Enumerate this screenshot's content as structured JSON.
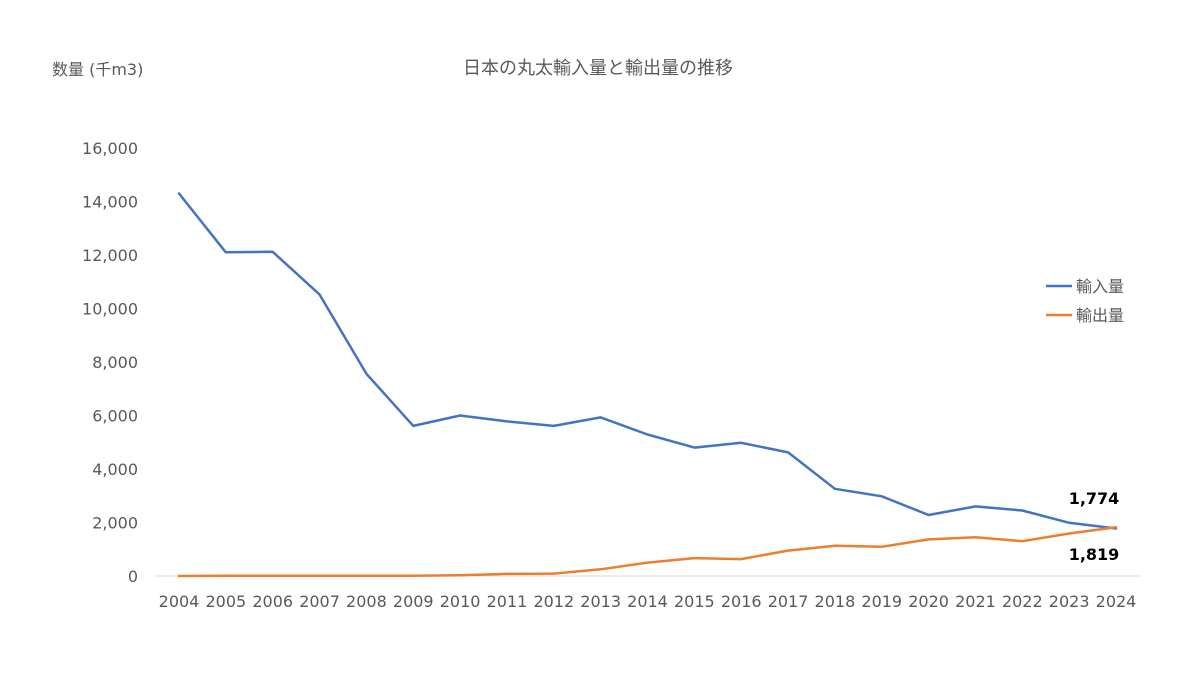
{
  "chart_data": {
    "type": "line",
    "title": "日本の丸太輸入量と輸出量の推移",
    "ylabel": "数量 (千m3)",
    "xlabel": "",
    "ylim": [
      0,
      16000
    ],
    "yticks": [
      0,
      2000,
      4000,
      6000,
      8000,
      10000,
      12000,
      14000,
      16000
    ],
    "ytick_labels": [
      "0",
      "2,000",
      "4,000",
      "6,000",
      "8,000",
      "10,000",
      "12,000",
      "14,000",
      "16,000"
    ],
    "grid": false,
    "legend_position": "right",
    "categories": [
      "2004",
      "2005",
      "2006",
      "2007",
      "2008",
      "2009",
      "2010",
      "2011",
      "2012",
      "2013",
      "2014",
      "2015",
      "2016",
      "2017",
      "2018",
      "2019",
      "2020",
      "2021",
      "2022",
      "2023",
      "2024"
    ],
    "series": [
      {
        "name": "輸入量",
        "color": "#4472C4",
        "values": [
          14300,
          12100,
          12120,
          10520,
          7560,
          5610,
          6000,
          5780,
          5610,
          5930,
          5290,
          4800,
          4980,
          4620,
          3260,
          2980,
          2280,
          2600,
          2450,
          1990,
          1774
        ]
      },
      {
        "name": "輸出量",
        "color": "#ED7D31",
        "values": [
          0,
          10,
          10,
          10,
          10,
          10,
          30,
          80,
          90,
          250,
          500,
          670,
          630,
          950,
          1130,
          1090,
          1370,
          1450,
          1300,
          1590,
          1819
        ]
      }
    ],
    "annotations": [
      {
        "text": "1,774",
        "series": 0,
        "index": 20
      },
      {
        "text": "1,819",
        "series": 1,
        "index": 20
      }
    ]
  }
}
